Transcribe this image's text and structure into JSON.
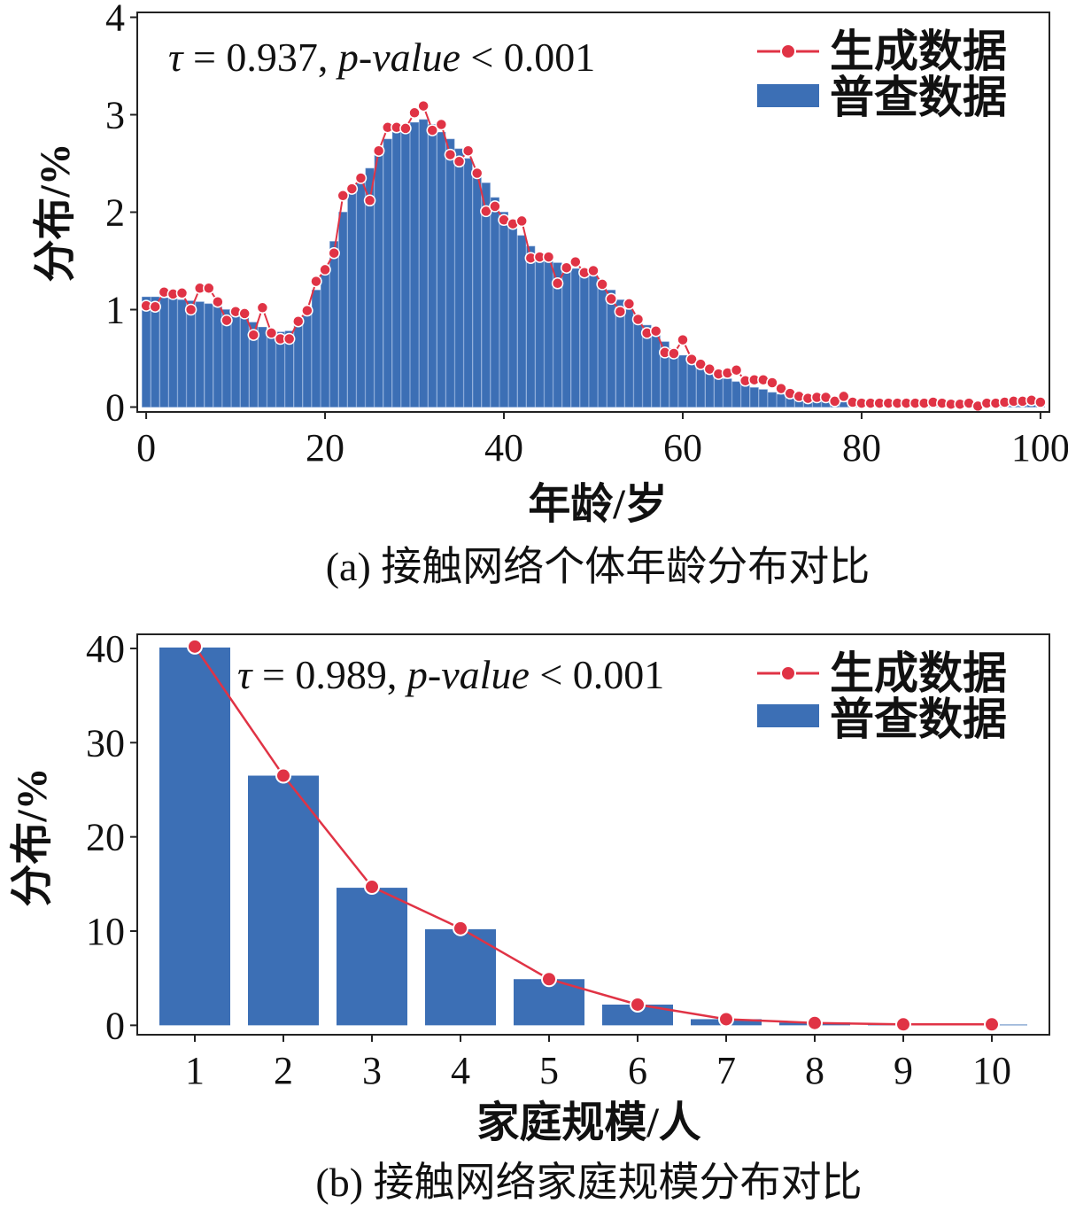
{
  "colors": {
    "bar": "#3c6fb5",
    "line": "#e03345",
    "axis": "#222222",
    "text": "#111111"
  },
  "chart_data": [
    {
      "type": "bar",
      "caption": "(a) 接触网络个体年龄分布对比",
      "xlabel": "年龄/岁",
      "ylabel": "分布/%",
      "xlim": [
        -1,
        101
      ],
      "ylim": [
        -0.05,
        4.05
      ],
      "xticks": [
        0,
        20,
        40,
        60,
        80,
        100
      ],
      "yticks": [
        0,
        1,
        2,
        3,
        4
      ],
      "annotation": {
        "tau": "τ = 0.937, ",
        "pvalue": "p-value",
        "rest": " < 0.001"
      },
      "legend": [
        "生成数据",
        "普查数据"
      ],
      "legend_position": "top-right",
      "series": [
        {
          "name": "普查数据",
          "kind": "bar",
          "x": [
            0,
            1,
            2,
            3,
            4,
            5,
            6,
            7,
            8,
            9,
            10,
            11,
            12,
            13,
            14,
            15,
            16,
            17,
            18,
            19,
            20,
            21,
            22,
            23,
            24,
            25,
            26,
            27,
            28,
            29,
            30,
            31,
            32,
            33,
            34,
            35,
            36,
            37,
            38,
            39,
            40,
            41,
            42,
            43,
            44,
            45,
            46,
            47,
            48,
            49,
            50,
            51,
            52,
            53,
            54,
            55,
            56,
            57,
            58,
            59,
            60,
            61,
            62,
            63,
            64,
            65,
            66,
            67,
            68,
            69,
            70,
            71,
            72,
            73,
            74,
            75,
            76,
            77,
            78,
            79,
            80,
            81,
            82,
            83,
            84,
            85,
            86,
            87,
            88,
            89,
            90,
            91,
            92,
            93,
            94,
            95,
            96,
            97,
            98,
            99,
            100
          ],
          "values": [
            1.13,
            1.13,
            1.12,
            1.11,
            1.1,
            1.09,
            1.08,
            1.06,
            1.03,
            1.0,
            0.96,
            0.92,
            0.87,
            0.82,
            0.78,
            0.77,
            0.78,
            0.85,
            1.0,
            1.2,
            1.45,
            1.7,
            2.0,
            2.2,
            2.3,
            2.45,
            2.62,
            2.75,
            2.82,
            2.88,
            2.92,
            2.95,
            2.9,
            2.82,
            2.75,
            2.65,
            2.55,
            2.42,
            2.3,
            2.15,
            2.0,
            1.87,
            1.76,
            1.65,
            1.57,
            1.52,
            1.48,
            1.45,
            1.42,
            1.4,
            1.37,
            1.3,
            1.2,
            1.1,
            1.0,
            0.92,
            0.84,
            0.75,
            0.67,
            0.6,
            0.53,
            0.47,
            0.41,
            0.36,
            0.32,
            0.29,
            0.26,
            0.23,
            0.2,
            0.18,
            0.15,
            0.13,
            0.11,
            0.09,
            0.08,
            0.07,
            0.06,
            0.05,
            0.05,
            0.05,
            0.05,
            0.04,
            0.04,
            0.04,
            0.04,
            0.04,
            0.04,
            0.03,
            0.03,
            0.03,
            0.03,
            0.03,
            0.03,
            0.02,
            0.02,
            0.02,
            0.02,
            0.02,
            0.02,
            0.02,
            0.02
          ]
        },
        {
          "name": "生成数据",
          "kind": "line",
          "x": [
            0,
            1,
            2,
            3,
            4,
            5,
            6,
            7,
            8,
            9,
            10,
            11,
            12,
            13,
            14,
            15,
            16,
            17,
            18,
            19,
            20,
            21,
            22,
            23,
            24,
            25,
            26,
            27,
            28,
            29,
            30,
            31,
            32,
            33,
            34,
            35,
            36,
            37,
            38,
            39,
            40,
            41,
            42,
            43,
            44,
            45,
            46,
            47,
            48,
            49,
            50,
            51,
            52,
            53,
            54,
            55,
            56,
            57,
            58,
            59,
            60,
            61,
            62,
            63,
            64,
            65,
            66,
            67,
            68,
            69,
            70,
            71,
            72,
            73,
            74,
            75,
            76,
            77,
            78,
            79,
            80,
            81,
            82,
            83,
            84,
            85,
            86,
            87,
            88,
            89,
            90,
            91,
            92,
            93,
            94,
            95,
            96,
            97,
            98,
            99,
            100
          ],
          "values": [
            1.04,
            1.03,
            1.18,
            1.16,
            1.17,
            1.0,
            1.22,
            1.22,
            1.08,
            0.89,
            0.98,
            0.96,
            0.74,
            1.02,
            0.76,
            0.7,
            0.7,
            0.88,
            0.99,
            1.29,
            1.41,
            1.58,
            2.17,
            2.24,
            2.35,
            2.12,
            2.63,
            2.87,
            2.87,
            2.86,
            3.02,
            3.09,
            2.84,
            2.9,
            2.59,
            2.52,
            2.63,
            2.4,
            2.01,
            2.06,
            1.92,
            1.88,
            1.91,
            1.53,
            1.54,
            1.54,
            1.27,
            1.43,
            1.49,
            1.38,
            1.4,
            1.26,
            1.11,
            0.98,
            1.06,
            0.9,
            0.76,
            0.78,
            0.56,
            0.55,
            0.69,
            0.49,
            0.44,
            0.39,
            0.34,
            0.35,
            0.38,
            0.27,
            0.28,
            0.28,
            0.25,
            0.19,
            0.14,
            0.11,
            0.09,
            0.1,
            0.1,
            0.06,
            0.11,
            0.05,
            0.04,
            0.04,
            0.04,
            0.04,
            0.04,
            0.04,
            0.04,
            0.04,
            0.05,
            0.04,
            0.03,
            0.03,
            0.04,
            0.01,
            0.04,
            0.04,
            0.05,
            0.06,
            0.06,
            0.07,
            0.05
          ]
        }
      ]
    },
    {
      "type": "bar",
      "caption": "(b) 接触网络家庭规模分布对比",
      "xlabel": "家庭规模/人",
      "ylabel": "分布/%",
      "xlim": [
        0.35,
        10.65
      ],
      "ylim": [
        -1,
        41.5
      ],
      "xticks": [
        1,
        2,
        3,
        4,
        5,
        6,
        7,
        8,
        9,
        10
      ],
      "yticks": [
        0,
        10,
        20,
        30,
        40
      ],
      "annotation": {
        "tau": "τ = 0.989, ",
        "pvalue": "p-value",
        "rest": " < 0.001"
      },
      "legend": [
        "生成数据",
        "普查数据"
      ],
      "legend_position": "top-right",
      "series": [
        {
          "name": "普查数据",
          "kind": "bar",
          "x": [
            1,
            2,
            3,
            4,
            5,
            6,
            7,
            8,
            9,
            10
          ],
          "values": [
            40.1,
            26.5,
            14.6,
            10.2,
            4.9,
            2.2,
            0.65,
            0.3,
            0.12,
            0.08
          ]
        },
        {
          "name": "生成数据",
          "kind": "line",
          "x": [
            1,
            2,
            3,
            4,
            5,
            6,
            7,
            8,
            9,
            10
          ],
          "values": [
            40.2,
            26.5,
            14.7,
            10.3,
            4.9,
            2.2,
            0.65,
            0.25,
            0.1,
            0.1
          ]
        }
      ]
    }
  ]
}
